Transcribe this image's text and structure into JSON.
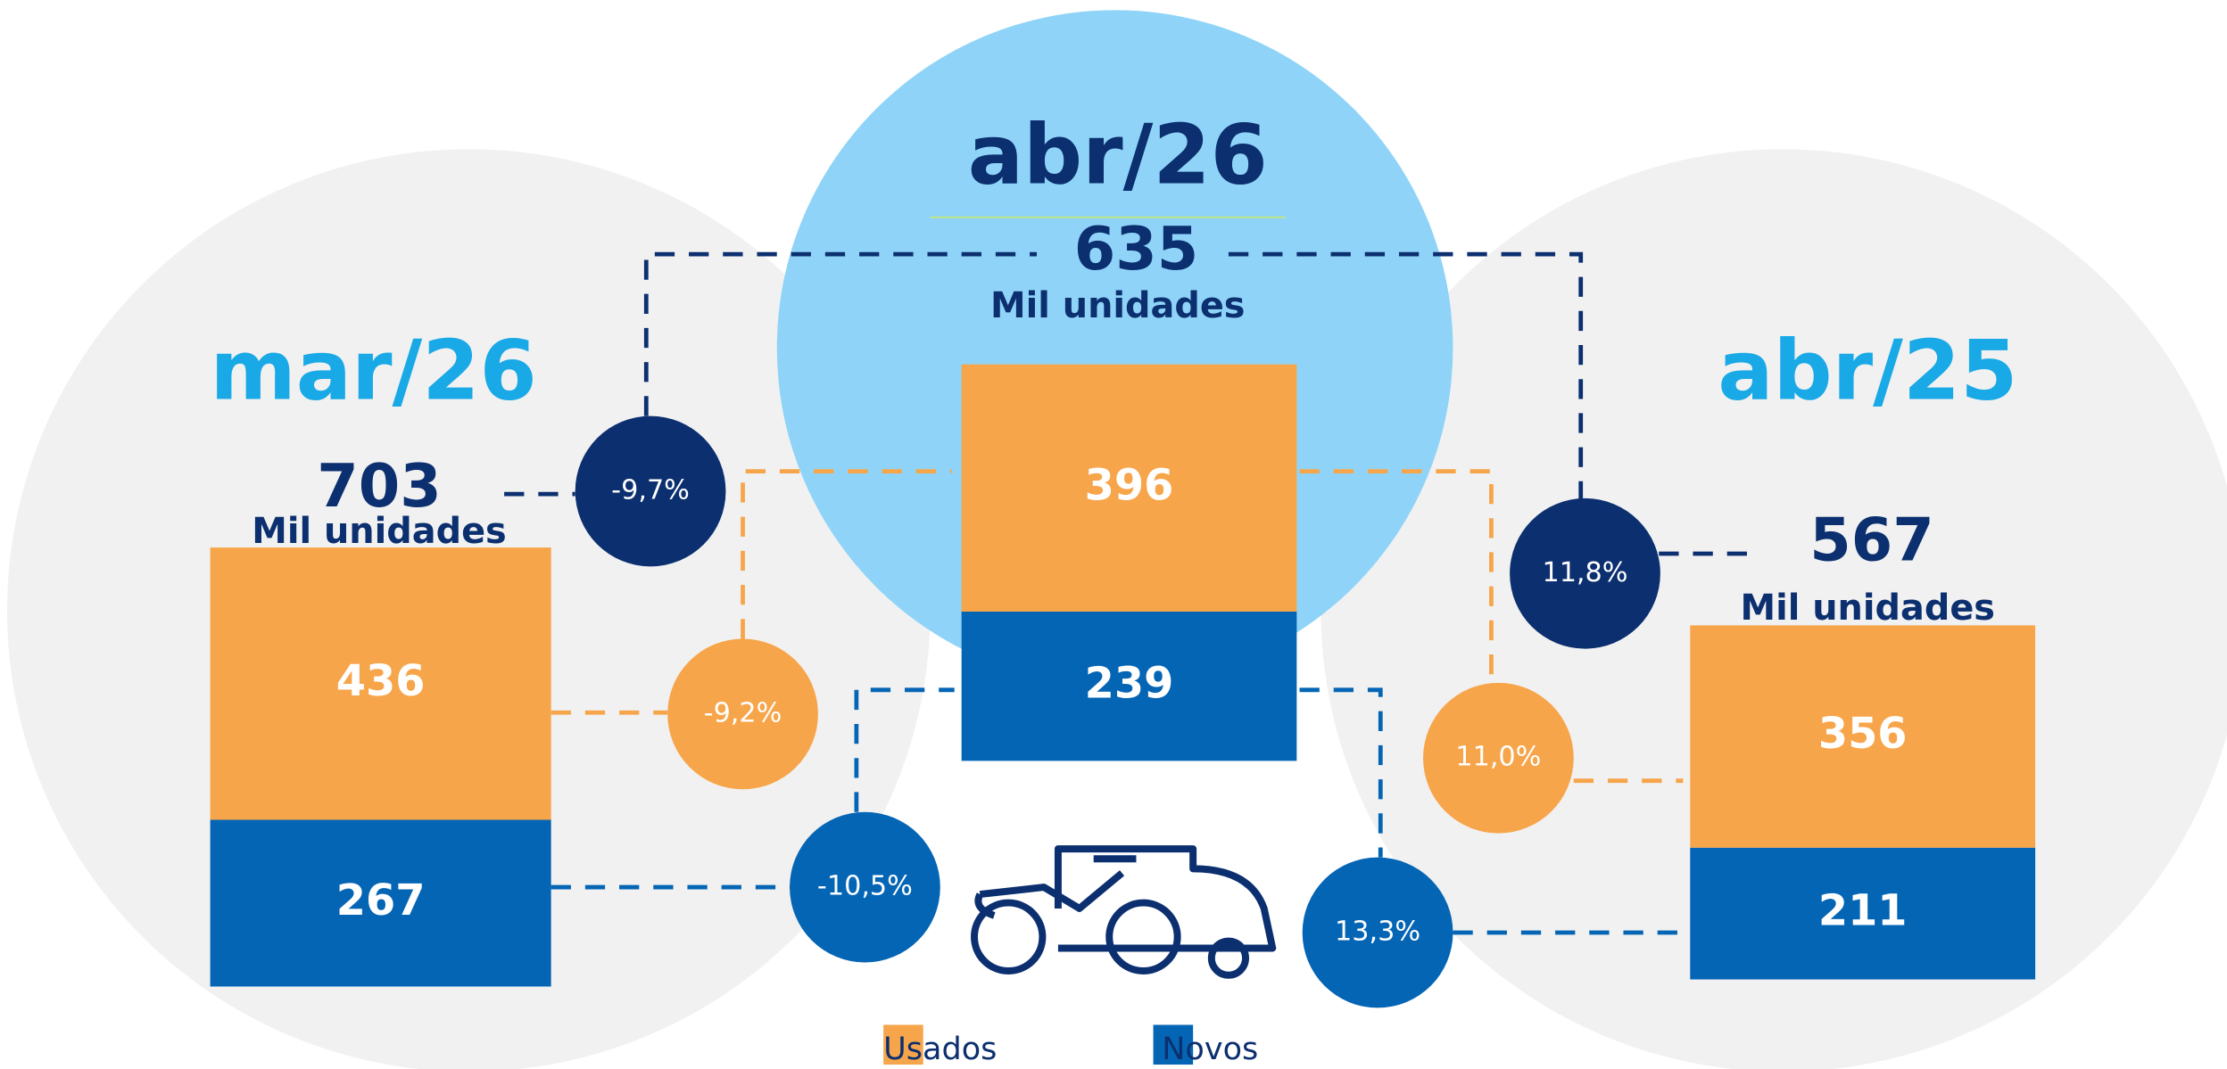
{
  "chart_data": {
    "type": "stacked_bar",
    "categories": [
      "mar/26",
      "abr/26",
      "abr/25"
    ],
    "totals": [
      703,
      635,
      567
    ],
    "total_unit": "Mil unidades",
    "series": [
      {
        "name": "Usados",
        "color": "#f7a54a",
        "values": [
          436,
          396,
          356
        ]
      },
      {
        "name": "Novos",
        "color": "#0565b5",
        "values": [
          267,
          239,
          211
        ]
      }
    ],
    "variations": {
      "total": [
        {
          "value": -9.7,
          "label": "-9,7%"
        },
        {
          "value": 11.8,
          "label": "11,8%"
        }
      ],
      "usados": [
        {
          "value": -9.2,
          "label": "-9,2%"
        },
        {
          "value": 11.0,
          "label": "11,0%"
        }
      ],
      "novos": [
        {
          "value": -10.5,
          "label": "-10,5%"
        },
        {
          "value": 13.3,
          "label": "13,3%"
        }
      ]
    },
    "variation_colors": {
      "total": "#0b2f6f",
      "usados": "#f7a54a",
      "novos": "#0565b5"
    }
  }
}
